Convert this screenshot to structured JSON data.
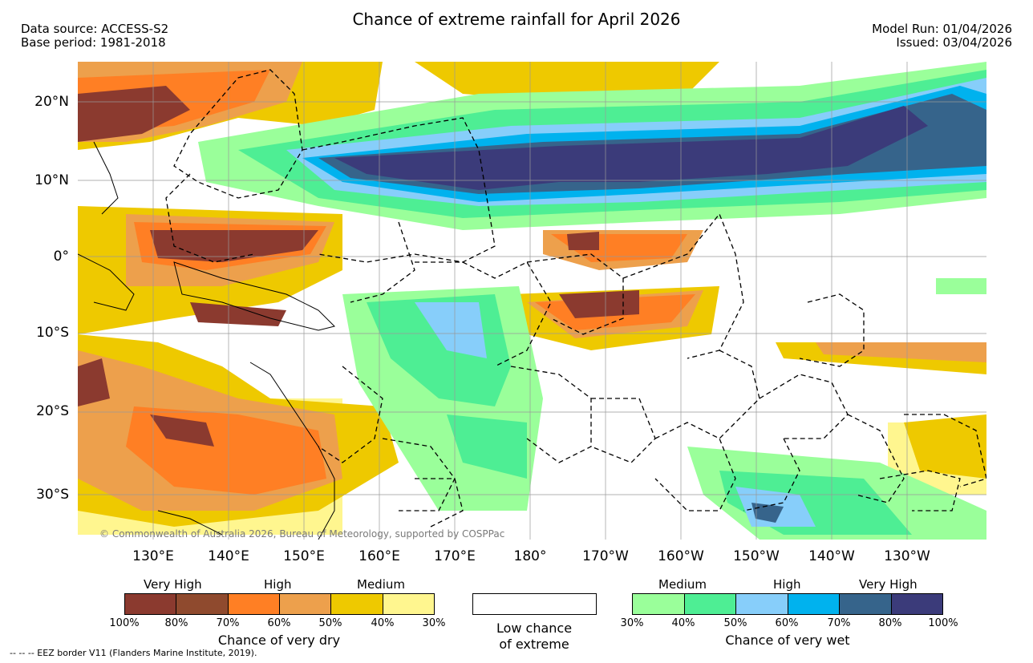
{
  "header": {
    "title": "Chance of extreme rainfall for April 2026",
    "data_source": "Data source: ACCESS-S2",
    "base_period": "Base period: 1981-2018",
    "model_run": "Model Run: 01/04/2026",
    "issued": "Issued: 03/04/2026"
  },
  "map": {
    "lat_labels": [
      "20°N",
      "10°N",
      "0°",
      "10°S",
      "20°S",
      "30°S"
    ],
    "lon_labels": [
      "130°E",
      "140°E",
      "150°E",
      "160°E",
      "170°E",
      "180°",
      "170°W",
      "160°W",
      "150°W",
      "140°W",
      "130°W"
    ],
    "copyright": "© Commonwealth of Australia 2026, Bureau of Meteorology, supported by COSPPac"
  },
  "legend": {
    "dry": {
      "categories": [
        "Very High",
        "High",
        "Medium"
      ],
      "ticks": [
        "100%",
        "80%",
        "70%",
        "60%",
        "50%",
        "40%",
        "30%"
      ],
      "colors": [
        "#8b3a2f",
        "#8f4a2e",
        "#ff7f24",
        "#eda04c",
        "#eec900",
        "#fff68f"
      ],
      "label": "Chance of very dry"
    },
    "low": {
      "line1": "Low chance",
      "line2": "of extreme"
    },
    "wet": {
      "categories": [
        "Medium",
        "High",
        "Very High"
      ],
      "ticks": [
        "30%",
        "40%",
        "50%",
        "60%",
        "70%",
        "80%",
        "100%"
      ],
      "colors": [
        "#9aff9a",
        "#4eee94",
        "#87cefa",
        "#00b2ee",
        "#36648b",
        "#3b3b7a"
      ],
      "label": "Chance of very wet"
    },
    "eez_note": "-- -- -- EEZ border V11 (Flanders Marine Institute, 2019)."
  }
}
